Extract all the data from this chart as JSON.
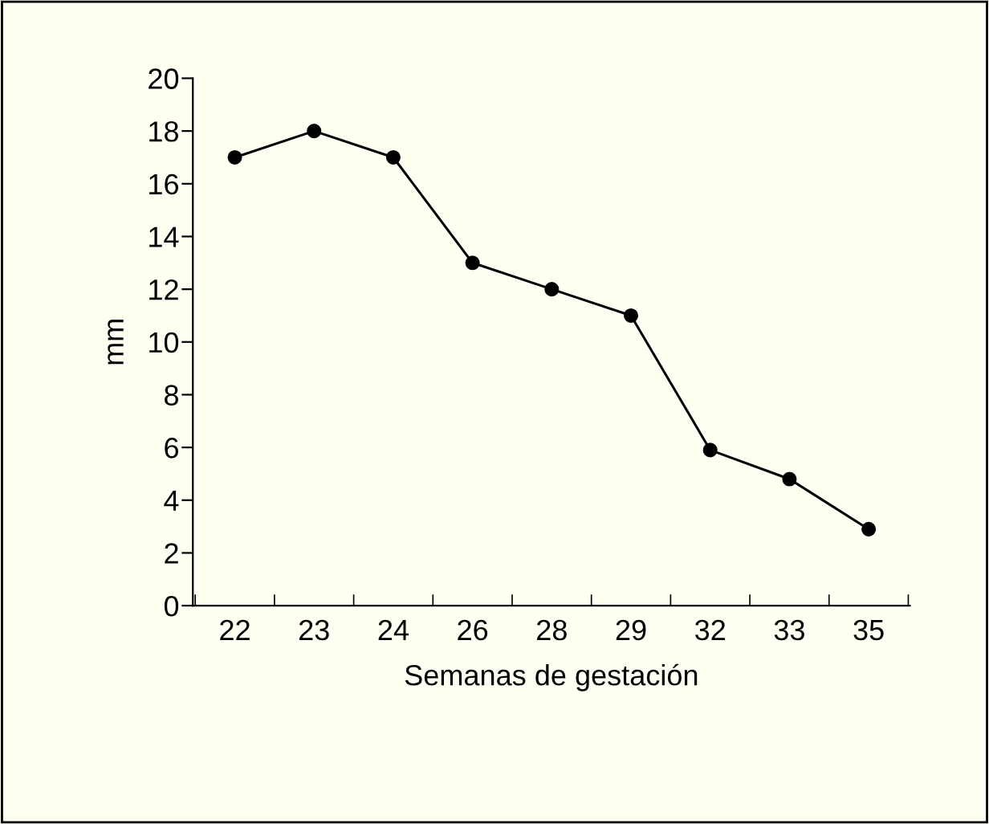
{
  "chart_data": {
    "type": "line",
    "xlabel": "Semanas de gestación",
    "ylabel": "mm",
    "categories": [
      "22",
      "23",
      "24",
      "26",
      "28",
      "29",
      "32",
      "33",
      "35"
    ],
    "series": [
      {
        "color": "#000000",
        "values": [
          17,
          18,
          17,
          13,
          12,
          11,
          5.9,
          4.8,
          2.9
        ]
      }
    ],
    "ylim": [
      0,
      20
    ],
    "yticks": [
      0,
      2,
      4,
      6,
      8,
      10,
      12,
      14,
      16,
      18,
      20
    ],
    "marker": "circle",
    "line_style": "solid",
    "grid": false,
    "legend": false
  }
}
